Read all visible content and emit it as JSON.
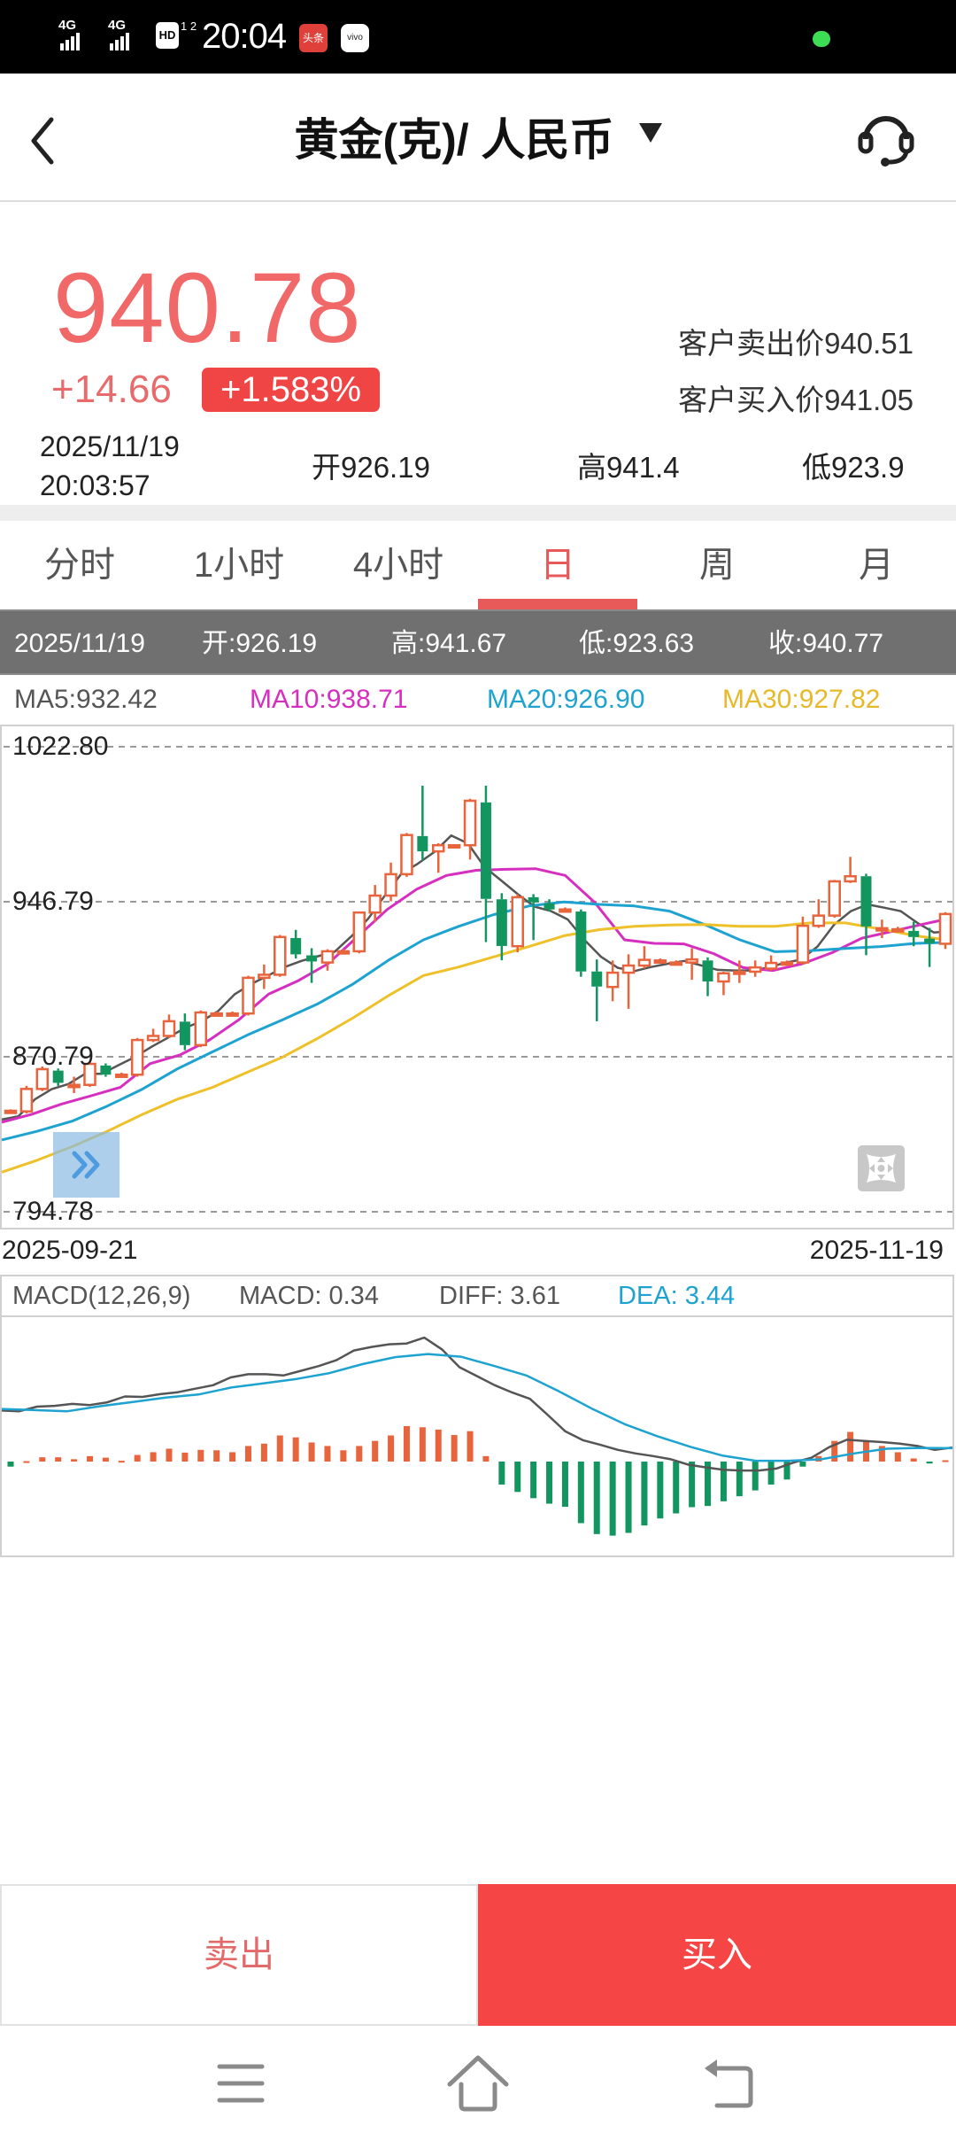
{
  "status_bar": {
    "signal1": "4G",
    "signal2": "4G",
    "hd_label": "HD",
    "hd_sub": "1 2",
    "time": "20:04",
    "app_icon_1": "头条",
    "app_icon_2": "vivo"
  },
  "header": {
    "back_icon": "chevron-left-icon",
    "title": "黄金(克)/ 人民币",
    "dropdown_icon": "caret-down-icon",
    "service_icon": "headset-icon"
  },
  "quote": {
    "price": "940.78",
    "change": "+14.66",
    "change_pct": "+1.583%",
    "client_sell": "客户卖出价940.51",
    "client_buy": "客户买入价941.05",
    "date": "2025/11/19",
    "time": "20:03:57",
    "open": "开926.19",
    "high": "高941.4",
    "low": "低923.9"
  },
  "tabs": [
    {
      "label": "分时",
      "active": false
    },
    {
      "label": "1小时",
      "active": false
    },
    {
      "label": "4小时",
      "active": false
    },
    {
      "label": "日",
      "active": true
    },
    {
      "label": "周",
      "active": false
    },
    {
      "label": "月",
      "active": false
    }
  ],
  "ohlc_bar": {
    "date": "2025/11/19",
    "open": "开:926.19",
    "high": "高:941.67",
    "low": "低:923.63",
    "close": "收:940.77"
  },
  "ma_legend": {
    "ma5": "MA5:932.42",
    "ma10": "MA10:938.71",
    "ma20": "MA20:926.90",
    "ma30": "MA30:927.82"
  },
  "colors": {
    "up": "#e8643c",
    "down": "#13955f",
    "price_red": "#f06868",
    "accent_red": "#f54545",
    "ma5": "#555555",
    "ma10": "#d62fc0",
    "ma20": "#1ea3d1",
    "ma30": "#eec12a",
    "diff": "#555555",
    "dea": "#1ea3d1",
    "tab_active": "#e85a5a"
  },
  "chart": {
    "y_labels": [
      "1022.80",
      "946.79",
      "870.79",
      "794.78"
    ],
    "date_start": "2025-09-21",
    "date_end": "2025-11-19",
    "more_icon": "double-chevron-right-icon",
    "fullscreen_icon": "fullscreen-icon"
  },
  "macd_legend": {
    "title": "MACD(12,26,9)",
    "macd": "MACD: 0.34",
    "diff": "DIFF: 3.61",
    "dea": "DEA: 3.44"
  },
  "actions": {
    "sell": "卖出",
    "buy": "买入"
  },
  "nav_bar": {
    "menu_icon": "menu-icon",
    "home_icon": "home-icon",
    "back_icon": "back-icon"
  },
  "chart_data": [
    {
      "type": "candlestick",
      "title": "黄金(克)/ 人民币 日K",
      "xlabel": "",
      "ylabel": "",
      "x_range": [
        "2025-09-21",
        "2025-11-19"
      ],
      "ylim": [
        794.78,
        1022.8
      ],
      "y_ticks": [
        1022.8,
        946.79,
        870.79,
        794.78
      ],
      "grid": true,
      "candles": [
        [
          844.3,
          845.0,
          843.5,
          844.3
        ],
        [
          844.0,
          856.5,
          843.0,
          855.0
        ],
        [
          855.0,
          866.0,
          854.0,
          864.7
        ],
        [
          864.0,
          865.0,
          856.5,
          858.0
        ],
        [
          857.0,
          861.0,
          853.0,
          857.0
        ],
        [
          857.0,
          868.5,
          856.0,
          867.3
        ],
        [
          866.5,
          867.5,
          861.0,
          862.0
        ],
        [
          862.0,
          863.0,
          861.0,
          862.0
        ],
        [
          862.0,
          880.0,
          861.0,
          879.0
        ],
        [
          879.0,
          884.5,
          878.0,
          881.0
        ],
        [
          881.0,
          891.5,
          880.0,
          888.2
        ],
        [
          888.0,
          892.0,
          874.0,
          876.5
        ],
        [
          876.5,
          893.5,
          875.5,
          892.5
        ],
        [
          892.0,
          893.0,
          891.0,
          892.0
        ],
        [
          892.0,
          893.0,
          891.5,
          892.0
        ],
        [
          892.0,
          910.5,
          891.0,
          909.5
        ],
        [
          909.5,
          916.0,
          904.0,
          911.0
        ],
        [
          911.0,
          930.5,
          910.0,
          929.5
        ],
        [
          929.0,
          933.0,
          919.0,
          921.0
        ],
        [
          920.5,
          924.0,
          907.0,
          917.5
        ],
        [
          917.0,
          923.5,
          913.0,
          922.5
        ],
        [
          922.5,
          923.5,
          921.5,
          922.5
        ],
        [
          922.5,
          942.0,
          921.5,
          941.5
        ],
        [
          941.5,
          955.0,
          937.0,
          949.8
        ],
        [
          949.8,
          966.0,
          947.0,
          960.3
        ],
        [
          960.3,
          980.5,
          959.0,
          979.5
        ],
        [
          979.0,
          1003.7,
          967.0,
          971.5
        ],
        [
          971.5,
          975.5,
          961.0,
          974.5
        ],
        [
          974.5,
          975.0,
          974.0,
          974.5
        ],
        [
          974.5,
          997.3,
          967.5,
          996.3
        ],
        [
          995.5,
          1003.7,
          927.0,
          948.2
        ],
        [
          948.0,
          951.0,
          918.1,
          925.1
        ],
        [
          925.0,
          950.5,
          922.0,
          949.0
        ],
        [
          949.0,
          950.5,
          928.0,
          946.5
        ],
        [
          946.0,
          948.0,
          942.0,
          943.0
        ],
        [
          943.0,
          944.0,
          942.0,
          943.0
        ],
        [
          942.0,
          943.0,
          910.0,
          912.6
        ],
        [
          912.6,
          918.5,
          888.2,
          905.2
        ],
        [
          905.0,
          918.0,
          898.0,
          912.0
        ],
        [
          912.0,
          921.0,
          894.3,
          915.5
        ],
        [
          915.5,
          925.0,
          914.0,
          918.3
        ],
        [
          918.0,
          919.0,
          917.0,
          918.0
        ],
        [
          917.0,
          918.0,
          916.0,
          917.0
        ],
        [
          917.0,
          924.0,
          908.5,
          918.5
        ],
        [
          918.0,
          919.5,
          900.5,
          907.7
        ],
        [
          907.7,
          912.5,
          901.0,
          911.7
        ],
        [
          912.5,
          918.0,
          907.0,
          912.5
        ],
        [
          912.5,
          918.0,
          910.0,
          914.6
        ],
        [
          914.0,
          920.5,
          913.0,
          916.8
        ],
        [
          917.0,
          918.0,
          916.0,
          917.0
        ],
        [
          917.0,
          939.5,
          916.0,
          935.0
        ],
        [
          935.0,
          948.0,
          934.0,
          940.0
        ],
        [
          940.0,
          957.5,
          939.0,
          956.8
        ],
        [
          956.8,
          968.8,
          956.0,
          959.3
        ],
        [
          959.3,
          960.5,
          920.6,
          934.7
        ],
        [
          933.8,
          938.0,
          929.0,
          933.8
        ],
        [
          933.3,
          934.5,
          932.0,
          933.3
        ],
        [
          932.5,
          937.0,
          925.0,
          929.5
        ],
        [
          928.7,
          934.0,
          914.8,
          926.5
        ],
        [
          926.19,
          941.67,
          923.63,
          940.77
        ]
      ],
      "candle_format": [
        "open",
        "high",
        "low",
        "close"
      ],
      "series": [
        {
          "name": "MA5",
          "latest": 932.42,
          "values": [
            840.0,
            841.6,
            850.0,
            854.9,
            857.4,
            862.4,
            862.4,
            866.6,
            870.7,
            875.7,
            880.2,
            884.9,
            888.2,
            893.2,
            901.5,
            906.5,
            910.6,
            914.8,
            917.8,
            920.1,
            922.3,
            929.8,
            938.4,
            949.7,
            960.5,
            965.5,
            971.3,
            979.3,
            975.4,
            963.8,
            957.2,
            950.5,
            944.4,
            942.2,
            938.1,
            928.1,
            919.8,
            914.4,
            912.8,
            914.8,
            916.4,
            917.8,
            915.6,
            913.4,
            913.1,
            913.1,
            914.4,
            916.8,
            918.4,
            924.8,
            935.6,
            942.2,
            945.5,
            943.9,
            942.2,
            936.4,
            931.7,
            932.4
          ]
        },
        {
          "name": "MA10",
          "latest": 938.71,
          "values": [
            838.7,
            842.5,
            847.5,
            851.6,
            855.8,
            867.4,
            871.6,
            879.0,
            889.0,
            901.5,
            908.1,
            916.4,
            929.7,
            943.0,
            953.0,
            959.7,
            962.2,
            962.7,
            963.0,
            959.7,
            946.4,
            928.1,
            926.4,
            926.1,
            921.4,
            914.5,
            913.1,
            916.4,
            921.8,
            928.9,
            932.2,
            935.6,
            938.7
          ]
        },
        {
          "name": "MA20",
          "latest": 926.9,
          "values": [
            830.0,
            834.2,
            839.2,
            846.6,
            854.9,
            864.9,
            873.2,
            881.5,
            889.0,
            896.8,
            906.5,
            918.1,
            928.1,
            934.7,
            940.5,
            944.7,
            946.7,
            945.5,
            944.7,
            942.2,
            935.6,
            928.1,
            922.3,
            922.8,
            923.9,
            924.8,
            926.4,
            926.9
          ]
        },
        {
          "name": "MA30",
          "latest": 927.82,
          "values": [
            814.2,
            820.0,
            826.7,
            834.2,
            842.5,
            850.0,
            855.8,
            863.3,
            870.7,
            879.9,
            889.9,
            900.7,
            910.6,
            914.8,
            919.8,
            924.8,
            930.1,
            933.1,
            934.7,
            935.4,
            935.6,
            934.7,
            934.7,
            936.4,
            936.4,
            933.4,
            930.1,
            927.8
          ]
        }
      ]
    },
    {
      "type": "bar",
      "title": "MACD(12,26,9)",
      "legend": [
        "MACD: 0.34",
        "DIFF: 3.61",
        "DEA: 3.44"
      ],
      "x_range": [
        "2025-09-21",
        "2025-11-19"
      ],
      "macd_hist": [
        -1.3,
        0.1,
        1.1,
        1.1,
        0.6,
        1.4,
        1.0,
        0.2,
        1.7,
        2.4,
        3.3,
        2.3,
        3.0,
        2.9,
        2.4,
        4.0,
        4.6,
        6.7,
        6.2,
        4.9,
        4.0,
        2.9,
        4.0,
        5.3,
        6.7,
        9.1,
        8.8,
        8.2,
        6.8,
        7.8,
        1.4,
        -5.9,
        -7.8,
        -9.4,
        -10.8,
        -11.6,
        -15.8,
        -18.6,
        -19.0,
        -18.3,
        -16.4,
        -14.6,
        -13.3,
        -11.7,
        -11.4,
        -10.2,
        -8.9,
        -7.4,
        -5.9,
        -4.6,
        -1.3,
        1.4,
        5.3,
        7.6,
        5.2,
        4.0,
        2.4,
        0.8,
        -0.5,
        0.34
      ],
      "series": [
        {
          "name": "DIFF",
          "latest": 3.61,
          "values": [
            13.1,
            12.9,
            14.1,
            14.3,
            14.8,
            14.5,
            15.2,
            16.7,
            16.6,
            17.3,
            17.8,
            18.7,
            19.6,
            21.6,
            22.4,
            22.4,
            22.1,
            23.3,
            24.5,
            26.0,
            28.5,
            29.4,
            30.1,
            30.3,
            31.8,
            28.8,
            24.2,
            21.9,
            19.6,
            17.7,
            16.1,
            12.0,
            7.8,
            5.5,
            4.3,
            3.0,
            2.1,
            1.4,
            0.6,
            -0.8,
            -1.5,
            -2.1,
            -2.3,
            -2.3,
            -1.8,
            -0.2,
            1.0,
            3.7,
            5.6,
            5.3,
            5.0,
            4.6,
            4.0,
            3.0,
            3.61
          ]
        },
        {
          "name": "DEA",
          "latest": 3.44,
          "values": [
            13.5,
            13.2,
            12.9,
            14.2,
            15.3,
            16.4,
            17.2,
            19.0,
            20.1,
            21.2,
            22.7,
            25.0,
            26.8,
            27.6,
            26.9,
            24.6,
            22.1,
            18.0,
            13.6,
            9.6,
            6.5,
            3.8,
            1.5,
            0.2,
            0.2,
            0.6,
            2.1,
            3.3,
            3.5,
            3.44
          ]
        }
      ]
    }
  ]
}
